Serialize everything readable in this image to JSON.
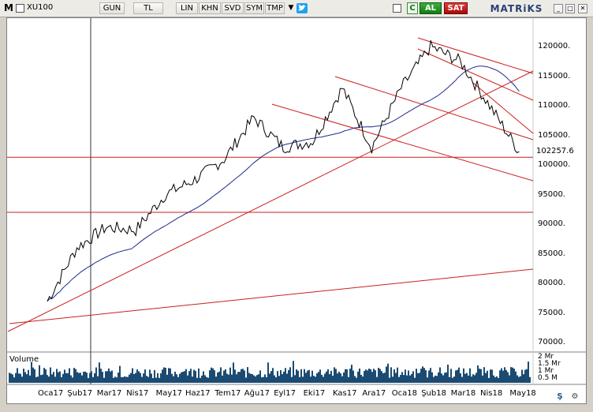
{
  "toolbar": {
    "logo": "M",
    "symbol": "XU100",
    "period": "GUN",
    "currency": "TL",
    "scale_lin": "LIN",
    "khn": "KHN",
    "svd": "SVD",
    "sym": "SYM",
    "tmp": "TMP",
    "settings_symbol": "C",
    "buy": "AL",
    "sell": "SAT",
    "brand": "MATRiKS"
  },
  "price_axis": {
    "labels": [
      "120000.",
      "115000.",
      "110000.",
      "105000.",
      "100000.",
      "95000.",
      "90000.",
      "85000.",
      "80000.",
      "75000.",
      "70000."
    ],
    "last_price": "102257.6"
  },
  "volume": {
    "title": "Volume",
    "axis_labels": [
      "2 Mr",
      "1.5 Mr",
      "1 Mr",
      "0.5 M"
    ]
  },
  "time_axis": {
    "labels": [
      "Oca17",
      "Şub17",
      "Mar17",
      "Nis17",
      "May17",
      "Haz17",
      "Tem17",
      "Ağu17",
      "Eyl17",
      "Eki17",
      "Kas17",
      "Ara17",
      "Oca18",
      "Şub18",
      "Mar18",
      "Nis18",
      "May18"
    ]
  },
  "colors": {
    "price": "#000000",
    "moving_average": "#1e2a8c",
    "trend_lines": "#cc1f1f",
    "volume": "#1b4b72",
    "buy": "#1a8c1a",
    "sell": "#c11616"
  },
  "chart_data": {
    "type": "line",
    "title": "",
    "ylabel": "",
    "xlabel": "",
    "ylim": [
      68000,
      124000
    ],
    "x": [
      "Oca17",
      "Şub17",
      "Mar17",
      "Nis17",
      "May17",
      "Haz17",
      "Tem17",
      "Ağu17",
      "Eyl17",
      "Eki17",
      "Kas17",
      "Ara17",
      "Oca18",
      "Şub18",
      "Mar18",
      "Nis18",
      "May18"
    ],
    "series": [
      {
        "values": [
          77000,
          86000,
          89500,
          89000,
          95000,
          97500,
          101000,
          108000,
          103000,
          104000,
          113000,
          103000,
          113000,
          120000,
          117500,
          110000,
          102257.6
        ]
      }
    ],
    "horizontal_lines": [
      101300,
      92000
    ],
    "grid": false
  }
}
